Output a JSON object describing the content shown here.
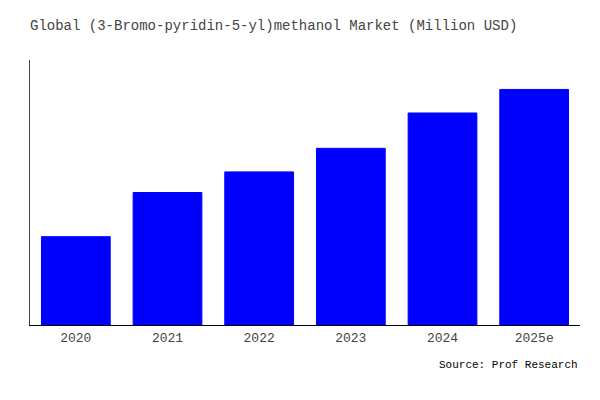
{
  "chart_data": {
    "type": "bar",
    "title": "Global (3-Bromo-pyridin-5-yl)methanol Market (Million USD)",
    "categories": [
      "2020",
      "2021",
      "2022",
      "2023",
      "2024",
      "2025e"
    ],
    "values": [
      3.0,
      4.5,
      5.2,
      6.0,
      7.2,
      8.0
    ],
    "color": "#0000FF",
    "ylim": [
      0,
      9.0
    ],
    "grid": false,
    "tick_labels": "x",
    "annotations": [
      "Source: Prof Research"
    ]
  }
}
